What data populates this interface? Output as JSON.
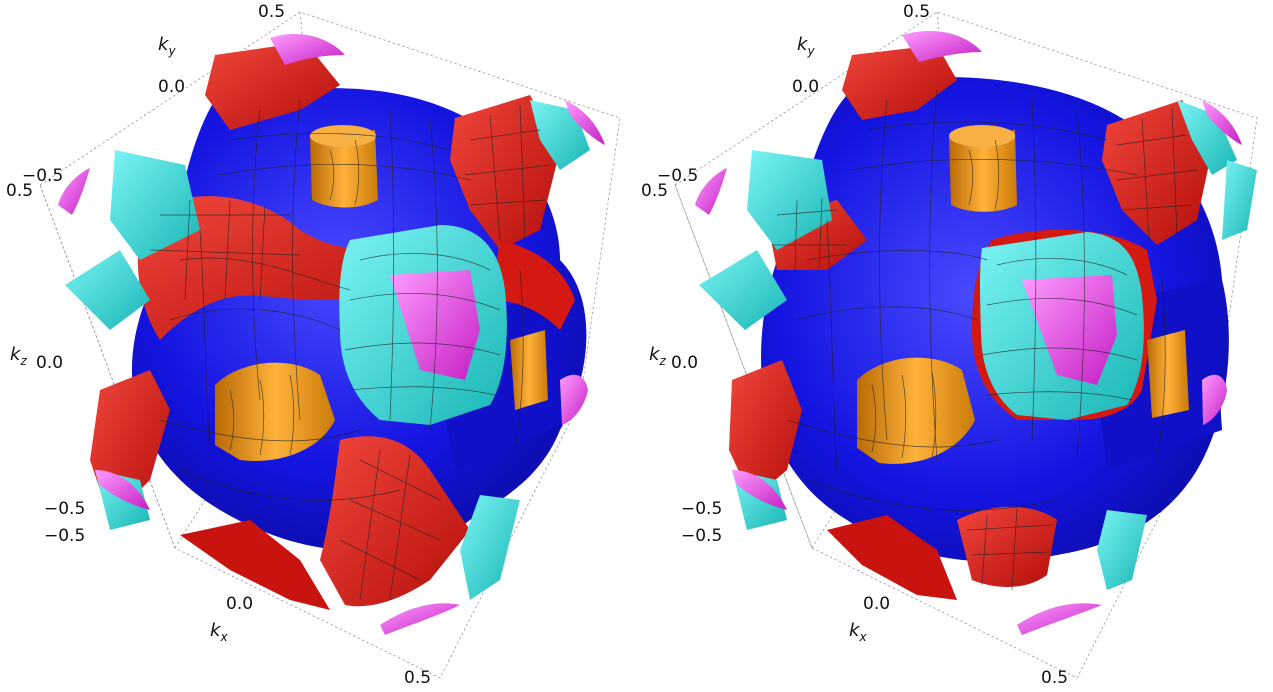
{
  "colors": {
    "red_surface": "#e21a14",
    "blue_surface": "#1414e0",
    "cyan_surface": "#22d8d8",
    "magenta_surface": "#e335e3",
    "orange_surface": "#f29a12",
    "mesh_lines": "#111111",
    "box_edges": "#9a9a9a"
  },
  "panels": [
    {
      "id": "left",
      "axes": {
        "kx": {
          "symbol": "k",
          "subscript": "x",
          "ticks": [
            "0.0",
            "0.5",
            "−0.5"
          ]
        },
        "ky": {
          "symbol": "k",
          "subscript": "y",
          "ticks": [
            "0.5",
            "0.0",
            "−0.5"
          ]
        },
        "kz": {
          "symbol": "k",
          "subscript": "z",
          "ticks": [
            "0.5",
            "0.0",
            "−0.5"
          ]
        }
      }
    },
    {
      "id": "right",
      "axes": {
        "kx": {
          "symbol": "k",
          "subscript": "x",
          "ticks": [
            "0.0",
            "0.5",
            "−0.5"
          ]
        },
        "ky": {
          "symbol": "k",
          "subscript": "y",
          "ticks": [
            "0.5",
            "0.0",
            "−0.5"
          ]
        },
        "kz": {
          "symbol": "k",
          "subscript": "z",
          "ticks": [
            "0.5",
            "0.0",
            "−0.5"
          ]
        }
      }
    }
  ]
}
